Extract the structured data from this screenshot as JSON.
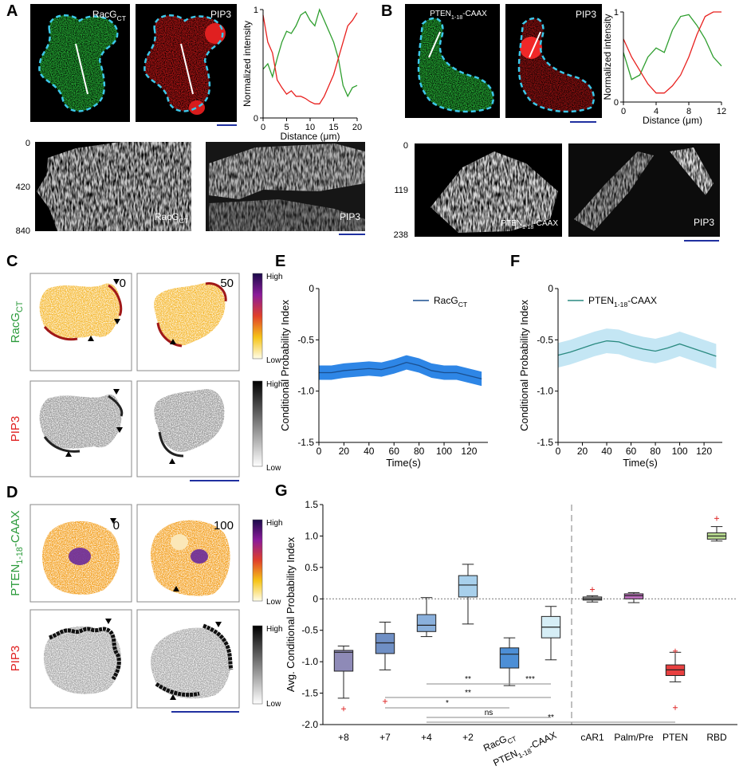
{
  "panel_labels": [
    "A",
    "B",
    "C",
    "D",
    "E",
    "F",
    "G"
  ],
  "panel_a": {
    "image_labels": [
      [
        "RacG",
        "CT"
      ],
      "PIP3"
    ],
    "kymo_ticks": [
      0,
      420,
      840
    ],
    "kymo_labels": [
      [
        "RacG",
        "CT"
      ],
      "PIP3"
    ]
  },
  "panel_b": {
    "image_labels": [
      [
        "PTEN",
        "1-18",
        "-CAAX"
      ],
      "PIP3"
    ],
    "kymo_ticks": [
      0,
      119,
      238
    ],
    "kymo_labels": [
      [
        "PTEN",
        "1-18",
        "-CAAX"
      ],
      "PIP3"
    ]
  },
  "panel_c": {
    "row_labels": [
      [
        "RacG",
        "CT"
      ],
      "PIP3"
    ],
    "frames": [
      0,
      50
    ],
    "colorbar": [
      "High",
      "Low"
    ]
  },
  "panel_d": {
    "row_labels": [
      [
        "PTEN",
        "1-18",
        "-CAAX"
      ],
      "PIP3"
    ],
    "frames": [
      0,
      100
    ],
    "colorbar": [
      "High",
      "Low"
    ]
  },
  "chart_data": [
    {
      "type": "line",
      "xlabel": "Distance (μm)",
      "ylabel": "Normalized intensity",
      "x": [
        0,
        1,
        2,
        3,
        4,
        5,
        6,
        7,
        8,
        9,
        10,
        11,
        12,
        13,
        14,
        15,
        16,
        17,
        18,
        19,
        20
      ],
      "xlim": [
        0,
        20
      ],
      "xticks": [
        0,
        5,
        10,
        15,
        20
      ],
      "ylim": [
        0,
        1
      ],
      "yticks": [
        0,
        1
      ],
      "series": [
        {
          "color": "#2e9e2e",
          "values": [
            0.45,
            0.5,
            0.38,
            0.55,
            0.7,
            0.8,
            0.78,
            0.85,
            0.95,
            0.98,
            0.9,
            0.85,
            1.0,
            0.9,
            0.8,
            0.7,
            0.55,
            0.3,
            0.2,
            0.28,
            0.3
          ]
        },
        {
          "color": "#e8201e",
          "values": [
            0.95,
            0.7,
            0.6,
            0.35,
            0.28,
            0.22,
            0.25,
            0.2,
            0.2,
            0.18,
            0.15,
            0.13,
            0.13,
            0.2,
            0.3,
            0.4,
            0.55,
            0.7,
            0.85,
            0.9,
            0.97
          ]
        }
      ]
    },
    {
      "type": "line",
      "xlabel": "Distance (μm)",
      "ylabel": "Normalized intensity",
      "x": [
        0,
        1,
        2,
        3,
        4,
        5,
        6,
        7,
        8,
        9,
        10,
        11,
        12
      ],
      "xlim": [
        0,
        12
      ],
      "xticks": [
        0,
        4,
        8,
        12
      ],
      "ylim": [
        0,
        1
      ],
      "yticks": [
        0,
        1
      ],
      "series": [
        {
          "color": "#2e9e2e",
          "values": [
            0.55,
            0.25,
            0.3,
            0.5,
            0.6,
            0.55,
            0.8,
            0.95,
            0.97,
            0.85,
            0.7,
            0.5,
            0.4
          ]
        },
        {
          "color": "#e8201e",
          "values": [
            0.7,
            0.5,
            0.35,
            0.2,
            0.1,
            0.1,
            0.18,
            0.3,
            0.5,
            0.75,
            0.95,
            1.0,
            1.0
          ]
        }
      ]
    },
    {
      "type": "line",
      "xlabel": "Time(s)",
      "ylabel": "Conditional Probability Index",
      "x": [
        0,
        10,
        20,
        30,
        40,
        50,
        60,
        70,
        80,
        90,
        100,
        110,
        120,
        130
      ],
      "xlim": [
        0,
        135
      ],
      "xticks": [
        0,
        20,
        40,
        60,
        80,
        100,
        120
      ],
      "ylim": [
        -1.5,
        0
      ],
      "yticks": [
        0,
        -0.5,
        {
          "value": -1,
          "label": "-1.0"
        },
        -1.5
      ],
      "series": [
        {
          "name": [
            "RacG",
            "CT"
          ],
          "color": "#1a4f8f",
          "band_color": "#2e86e6",
          "values": [
            -0.82,
            -0.82,
            -0.8,
            -0.79,
            -0.78,
            -0.79,
            -0.76,
            -0.72,
            -0.75,
            -0.8,
            -0.82,
            -0.82,
            -0.85,
            -0.88
          ],
          "error": [
            0.07,
            0.07,
            0.07,
            0.07,
            0.07,
            0.07,
            0.07,
            0.07,
            0.07,
            0.07,
            0.07,
            0.07,
            0.07,
            0.07
          ]
        }
      ]
    },
    {
      "type": "line",
      "xlabel": "Time(s)",
      "ylabel": "Conditional Probability Index",
      "x": [
        0,
        10,
        20,
        30,
        40,
        50,
        60,
        70,
        80,
        90,
        100,
        110,
        120,
        130
      ],
      "xlim": [
        0,
        135
      ],
      "xticks": [
        0,
        20,
        40,
        60,
        80,
        100,
        120
      ],
      "ylim": [
        -1.5,
        0
      ],
      "yticks": [
        0,
        -0.5,
        {
          "value": -1,
          "label": "-1.0"
        },
        -1.5
      ],
      "series": [
        {
          "name": [
            "PTEN",
            "1-18",
            "-CAAX"
          ],
          "color": "#2a8a80",
          "band_color": "#c4e6f4",
          "values": [
            -0.65,
            -0.62,
            -0.58,
            -0.54,
            -0.51,
            -0.52,
            -0.56,
            -0.59,
            -0.61,
            -0.58,
            -0.54,
            -0.58,
            -0.62,
            -0.66
          ],
          "error": [
            0.12,
            0.12,
            0.12,
            0.12,
            0.12,
            0.12,
            0.12,
            0.12,
            0.12,
            0.12,
            0.12,
            0.12,
            0.12,
            0.12
          ]
        }
      ]
    },
    {
      "type": "box",
      "ylabel": "Avg. Conditional Probability Index",
      "categories": [
        "+8",
        "+7",
        "+4",
        "+2",
        [
          "RacG",
          "CT"
        ],
        [
          "PTEN",
          "1-18",
          "-CAAX"
        ],
        "cAR1",
        "Palm/Pre",
        "PTEN",
        "RBD"
      ],
      "colors": [
        "#8e8ab7",
        "#6f8fc4",
        "#8ab0dc",
        "#a8d0ec",
        "#4d8fd6",
        "#d6eef6",
        "#aaaaaa",
        "#c070c0",
        "#e84040",
        "#b7d98f"
      ],
      "boxes": [
        {
          "min": -1.58,
          "q1": -1.15,
          "median": -0.85,
          "q3": -0.82,
          "max": -0.75,
          "outliers": [
            -1.75
          ]
        },
        {
          "min": -1.13,
          "q1": -0.87,
          "median": -0.7,
          "q3": -0.55,
          "max": -0.37,
          "outliers": [
            -1.63
          ]
        },
        {
          "min": -0.6,
          "q1": -0.52,
          "median": -0.42,
          "q3": -0.25,
          "max": 0.02,
          "outliers": []
        },
        {
          "min": -0.4,
          "q1": 0.03,
          "median": 0.22,
          "q3": 0.37,
          "max": 0.55,
          "outliers": []
        },
        {
          "min": -1.38,
          "q1": -1.1,
          "median": -0.88,
          "q3": -0.78,
          "max": -0.62,
          "outliers": []
        },
        {
          "min": -0.97,
          "q1": -0.62,
          "median": -0.45,
          "q3": -0.28,
          "max": -0.12,
          "outliers": []
        },
        {
          "min": -0.05,
          "q1": -0.02,
          "median": 0.0,
          "q3": 0.03,
          "max": 0.05,
          "outliers": [
            0.15
          ]
        },
        {
          "min": -0.06,
          "q1": 0.0,
          "median": 0.05,
          "q3": 0.08,
          "max": 0.1,
          "outliers": []
        },
        {
          "min": -1.32,
          "q1": -1.22,
          "median": -1.13,
          "q3": -1.05,
          "max": -0.85,
          "outliers": [
            -0.83,
            -1.73
          ]
        },
        {
          "min": 0.92,
          "q1": 0.95,
          "median": 1.0,
          "q3": 1.05,
          "max": 1.15,
          "outliers": [
            1.28
          ]
        }
      ],
      "ylim": [
        -2,
        1.5
      ],
      "yticks": [
        {
          "value": -2,
          "label": "-2.0"
        },
        -1.5,
        {
          "value": -1,
          "label": "-1.0"
        },
        -0.5,
        0,
        0.5,
        {
          "value": 1,
          "label": "1.0"
        },
        1.5
      ],
      "annotations": [
        "**",
        "***",
        "**",
        "*",
        "ns",
        "**"
      ]
    }
  ]
}
